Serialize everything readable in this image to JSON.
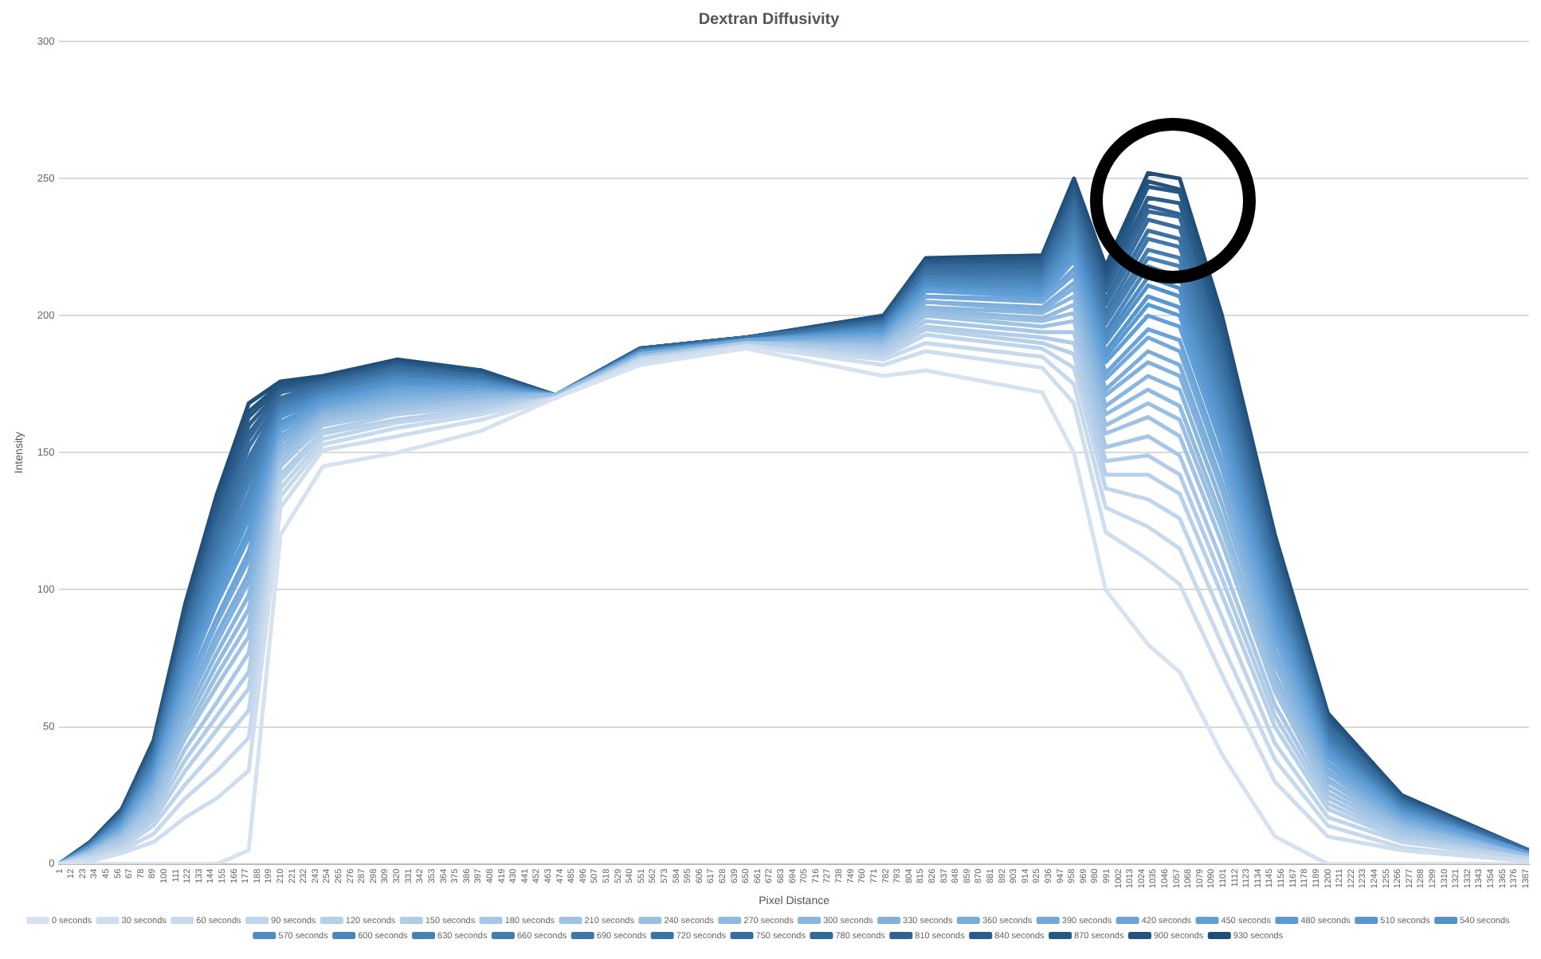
{
  "chart_data": {
    "type": "line",
    "title": "Dextran Diffusivity",
    "xlabel": "Pixel Distance",
    "ylabel": "Intensity",
    "grid": "y",
    "legend": "bottom",
    "marker": "none",
    "xlim": [
      1,
      1390
    ],
    "ylim": [
      0,
      300
    ],
    "yticks": [
      0,
      50,
      100,
      150,
      200,
      250,
      300
    ],
    "xticks": [
      1,
      12,
      23,
      34,
      45,
      56,
      67,
      78,
      89,
      100,
      111,
      122,
      133,
      144,
      155,
      166,
      177,
      188,
      199,
      210,
      221,
      232,
      243,
      254,
      265,
      276,
      287,
      298,
      309,
      320,
      331,
      342,
      353,
      364,
      375,
      386,
      397,
      408,
      419,
      430,
      441,
      452,
      463,
      474,
      485,
      496,
      507,
      518,
      529,
      540,
      551,
      562,
      573,
      584,
      595,
      606,
      617,
      628,
      639,
      650,
      661,
      672,
      683,
      694,
      705,
      716,
      727,
      738,
      749,
      760,
      771,
      782,
      793,
      804,
      815,
      826,
      837,
      848,
      859,
      870,
      881,
      892,
      903,
      914,
      925,
      936,
      947,
      958,
      969,
      980,
      991,
      1002,
      1013,
      1024,
      1035,
      1046,
      1057,
      1068,
      1079,
      1090,
      1101,
      1112,
      1123,
      1134,
      1145,
      1156,
      1167,
      1178,
      1189,
      1200,
      1211,
      1222,
      1233,
      1244,
      1255,
      1266,
      1277,
      1288,
      1299,
      1310,
      1321,
      1332,
      1343,
      1354,
      1365,
      1376,
      1387
    ],
    "x": [
      1,
      30,
      60,
      90,
      120,
      150,
      180,
      210,
      250,
      320,
      400,
      470,
      550,
      650,
      780,
      820,
      930,
      960,
      990,
      1030,
      1060,
      1100,
      1150,
      1200,
      1270,
      1390
    ],
    "series": [
      {
        "name": "0 seconds",
        "color": "#d6e2f0",
        "values": [
          0,
          0,
          0,
          0,
          0,
          0,
          5,
          120,
          145,
          150,
          158,
          170,
          182,
          188,
          178,
          180,
          172,
          150,
          100,
          80,
          70,
          40,
          10,
          0,
          0,
          0
        ]
      },
      {
        "name": "30 seconds",
        "color": "#cedeee",
        "values": [
          0,
          1,
          4,
          8,
          17,
          24,
          34,
          130,
          151,
          156,
          162,
          170,
          183,
          189,
          182,
          187,
          181,
          168,
          121,
          111,
          102,
          69,
          30,
          10,
          5,
          1
        ]
      },
      {
        "name": "60 seconds",
        "color": "#c7d9ed",
        "values": [
          0,
          2,
          5,
          11,
          24,
          34,
          46,
          134,
          153,
          159,
          164,
          170,
          184,
          189,
          184,
          190,
          185,
          175,
          130,
          123,
          115,
          80,
          38,
          14,
          6,
          1
        ]
      },
      {
        "name": "90 seconds",
        "color": "#bfd5eb",
        "values": [
          0,
          2,
          6,
          14,
          29,
          42,
          56,
          137,
          155,
          161,
          165,
          170,
          184,
          189,
          185,
          193,
          188,
          181,
          137,
          133,
          126,
          90,
          44,
          17,
          8,
          2
        ]
      },
      {
        "name": "120 seconds",
        "color": "#b7d0e9",
        "values": [
          0,
          3,
          7,
          16,
          34,
          49,
          64,
          140,
          157,
          162,
          166,
          170,
          184,
          189,
          186,
          195,
          190,
          186,
          142,
          142,
          135,
          98,
          50,
          20,
          9,
          2
        ]
      },
      {
        "name": "150 seconds",
        "color": "#b0cce8",
        "values": [
          0,
          3,
          8,
          18,
          38,
          54,
          70,
          142,
          158,
          164,
          167,
          170,
          184,
          190,
          187,
          196,
          192,
          190,
          147,
          149,
          142,
          104,
          54,
          22,
          10,
          2
        ]
      },
      {
        "name": "180 seconds",
        "color": "#a8c7e6",
        "values": [
          0,
          4,
          9,
          20,
          42,
          59,
          77,
          145,
          160,
          165,
          168,
          170,
          185,
          190,
          188,
          198,
          194,
          194,
          152,
          156,
          149,
          110,
          58,
          24,
          11,
          2
        ]
      },
      {
        "name": "210 seconds",
        "color": "#a0c3e4",
        "values": [
          0,
          4,
          10,
          22,
          46,
          65,
          83,
          147,
          161,
          166,
          169,
          170,
          185,
          190,
          189,
          200,
          196,
          198,
          157,
          163,
          156,
          117,
          63,
          26,
          12,
          2
        ]
      },
      {
        "name": "240 seconds",
        "color": "#99bfe3",
        "values": [
          0,
          4,
          10,
          23,
          48,
          69,
          88,
          149,
          162,
          167,
          169,
          171,
          185,
          190,
          189,
          201,
          198,
          201,
          160,
          168,
          162,
          122,
          66,
          28,
          13,
          3
        ]
      },
      {
        "name": "270 seconds",
        "color": "#91bae1",
        "values": [
          0,
          4,
          11,
          24,
          51,
          73,
          93,
          150,
          163,
          168,
          170,
          171,
          185,
          190,
          190,
          202,
          199,
          204,
          164,
          173,
          167,
          126,
          69,
          30,
          14,
          3
        ]
      },
      {
        "name": "300 seconds",
        "color": "#89b6df",
        "values": [
          0,
          5,
          11,
          26,
          54,
          77,
          98,
          152,
          164,
          169,
          171,
          171,
          185,
          190,
          191,
          203,
          201,
          207,
          167,
          178,
          173,
          131,
          73,
          31,
          14,
          3
        ]
      },
      {
        "name": "330 seconds",
        "color": "#81b1dd",
        "values": [
          0,
          5,
          12,
          27,
          57,
          81,
          103,
          154,
          165,
          170,
          171,
          171,
          186,
          190,
          191,
          205,
          202,
          210,
          171,
          183,
          178,
          136,
          76,
          33,
          15,
          3
        ]
      },
      {
        "name": "360 seconds",
        "color": "#7aaddc",
        "values": [
          0,
          5,
          12,
          28,
          59,
          84,
          106,
          155,
          165,
          171,
          172,
          171,
          186,
          190,
          192,
          205,
          203,
          212,
          173,
          187,
          182,
          139,
          78,
          34,
          16,
          3
        ]
      },
      {
        "name": "390 seconds",
        "color": "#72a8da",
        "values": [
          0,
          5,
          13,
          29,
          62,
          88,
          111,
          156,
          166,
          172,
          172,
          171,
          186,
          191,
          192,
          207,
          205,
          215,
          177,
          192,
          187,
          144,
          82,
          36,
          16,
          3
        ]
      },
      {
        "name": "420 seconds",
        "color": "#6aa4d8",
        "values": [
          0,
          5,
          13,
          30,
          64,
          90,
          114,
          158,
          167,
          173,
          173,
          171,
          186,
          191,
          193,
          207,
          206,
          217,
          179,
          195,
          191,
          147,
          84,
          37,
          17,
          3
        ]
      },
      {
        "name": "450 seconds",
        "color": "#639fd7",
        "values": [
          0,
          6,
          14,
          32,
          67,
          95,
          119,
          159,
          168,
          174,
          173,
          171,
          186,
          191,
          193,
          209,
          207,
          220,
          183,
          200,
          196,
          152,
          87,
          39,
          18,
          4
        ]
      },
      {
        "name": "480 seconds",
        "color": "#5b9bd5",
        "values": [
          0,
          6,
          14,
          32,
          68,
          97,
          122,
          160,
          169,
          174,
          174,
          171,
          186,
          191,
          194,
          210,
          208,
          222,
          185,
          204,
          200,
          155,
          89,
          40,
          18,
          4
        ]
      },
      {
        "name": "510 seconds",
        "color": "#5796cf",
        "values": [
          0,
          6,
          15,
          33,
          70,
          100,
          126,
          161,
          169,
          175,
          174,
          171,
          186,
          191,
          194,
          210,
          209,
          224,
          187,
          207,
          203,
          158,
          91,
          41,
          19,
          4
        ]
      },
      {
        "name": "540 seconds",
        "color": "#5391c9",
        "values": [
          0,
          6,
          15,
          34,
          72,
          103,
          129,
          163,
          170,
          176,
          175,
          171,
          187,
          191,
          195,
          211,
          210,
          226,
          190,
          211,
          207,
          162,
          94,
          42,
          19,
          4
        ]
      },
      {
        "name": "570 seconds",
        "color": "#4f8cc3",
        "values": [
          0,
          6,
          16,
          35,
          74,
          105,
          132,
          164,
          171,
          177,
          175,
          171,
          187,
          191,
          195,
          212,
          211,
          228,
          192,
          214,
          210,
          165,
          96,
          43,
          20,
          4
        ]
      },
      {
        "name": "600 seconds",
        "color": "#4b86bc",
        "values": [
          0,
          6,
          16,
          36,
          76,
          108,
          135,
          165,
          171,
          177,
          176,
          171,
          187,
          191,
          196,
          213,
          212,
          230,
          194,
          218,
          214,
          168,
          98,
          44,
          20,
          4
        ]
      },
      {
        "name": "630 seconds",
        "color": "#4781b6",
        "values": [
          0,
          7,
          16,
          37,
          78,
          111,
          139,
          166,
          172,
          178,
          176,
          171,
          187,
          191,
          196,
          214,
          213,
          232,
          197,
          221,
          218,
          171,
          100,
          45,
          21,
          4
        ]
      },
      {
        "name": "660 seconds",
        "color": "#437cb0",
        "values": [
          0,
          7,
          17,
          38,
          80,
          113,
          142,
          167,
          173,
          179,
          176,
          171,
          187,
          191,
          196,
          214,
          214,
          234,
          199,
          224,
          221,
          174,
          102,
          46,
          21,
          4
        ]
      },
      {
        "name": "690 seconds",
        "color": "#3f77aa",
        "values": [
          0,
          7,
          17,
          39,
          82,
          116,
          145,
          168,
          173,
          179,
          177,
          171,
          187,
          191,
          197,
          215,
          215,
          236,
          201,
          228,
          225,
          178,
          105,
          47,
          22,
          4
        ]
      },
      {
        "name": "720 seconds",
        "color": "#3b72a4",
        "values": [
          0,
          7,
          18,
          40,
          84,
          119,
          148,
          169,
          174,
          180,
          177,
          171,
          187,
          192,
          197,
          216,
          216,
          238,
          204,
          231,
          228,
          181,
          107,
          48,
          22,
          4
        ]
      },
      {
        "name": "750 seconds",
        "color": "#376d9e",
        "values": [
          0,
          7,
          18,
          41,
          86,
          122,
          152,
          170,
          175,
          181,
          178,
          171,
          187,
          192,
          198,
          217,
          217,
          240,
          206,
          235,
          232,
          184,
          109,
          50,
          23,
          5
        ]
      },
      {
        "name": "780 seconds",
        "color": "#336898",
        "values": [
          0,
          7,
          18,
          41,
          87,
          124,
          155,
          172,
          175,
          181,
          178,
          171,
          188,
          192,
          198,
          218,
          218,
          242,
          209,
          238,
          236,
          187,
          111,
          51,
          23,
          5
        ]
      },
      {
        "name": "810 seconds",
        "color": "#2f6291",
        "values": [
          0,
          7,
          19,
          42,
          88,
          126,
          157,
          172,
          176,
          182,
          178,
          171,
          188,
          192,
          198,
          218,
          219,
          243,
          210,
          240,
          237,
          189,
          112,
          51,
          23,
          5
        ]
      },
      {
        "name": "840 seconds",
        "color": "#2b5d8b",
        "values": [
          0,
          8,
          19,
          43,
          90,
          128,
          160,
          173,
          176,
          182,
          179,
          171,
          188,
          192,
          199,
          219,
          220,
          245,
          212,
          243,
          241,
          192,
          115,
          52,
          24,
          5
        ]
      },
      {
        "name": "870 seconds",
        "color": "#275885",
        "values": [
          0,
          8,
          19,
          44,
          92,
          131,
          163,
          174,
          177,
          183,
          179,
          171,
          188,
          192,
          199,
          220,
          221,
          247,
          214,
          247,
          245,
          195,
          117,
          53,
          24,
          5
        ]
      },
      {
        "name": "900 seconds",
        "color": "#23537f",
        "values": [
          0,
          8,
          20,
          44,
          93,
          132,
          165,
          175,
          177,
          183,
          180,
          171,
          188,
          192,
          200,
          220,
          221,
          248,
          216,
          249,
          246,
          197,
          118,
          54,
          25,
          5
        ]
      },
      {
        "name": "930 seconds",
        "color": "#1f4e79",
        "values": [
          0,
          8,
          20,
          45,
          95,
          135,
          168,
          176,
          178,
          184,
          180,
          171,
          188,
          192,
          200,
          221,
          222,
          250,
          218,
          252,
          250,
          200,
          120,
          55,
          25,
          5
        ]
      }
    ]
  }
}
